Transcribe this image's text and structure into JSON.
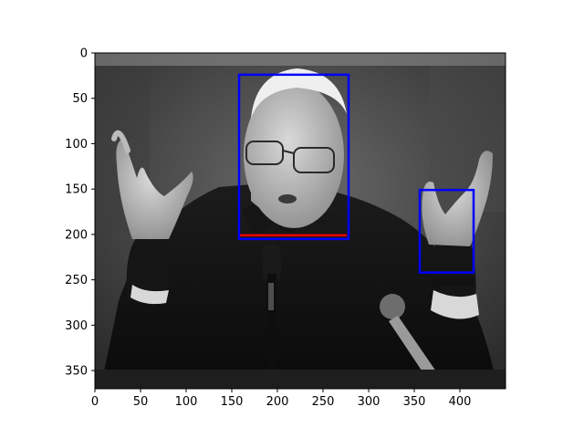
{
  "chart_data": {
    "type": "image",
    "image_size": [
      450,
      370
    ],
    "xlim": [
      0,
      450
    ],
    "ylim": [
      370,
      0
    ],
    "x_ticks": [
      0,
      50,
      100,
      150,
      200,
      250,
      300,
      350,
      400
    ],
    "y_ticks": [
      0,
      50,
      100,
      150,
      200,
      250,
      300,
      350
    ],
    "grid": false,
    "image_description": "grayscale photo of an elderly man in a dark suit with both hands raised, speaking into microphones",
    "boxes": [
      {
        "label": "face",
        "x0": 158,
        "y0": 24,
        "x1": 278,
        "y1": 205,
        "color": "#0000ff"
      },
      {
        "label": "hand",
        "x0": 356,
        "y0": 151,
        "x1": 415,
        "y1": 242,
        "color": "#0000ff"
      }
    ],
    "lines": [
      {
        "x0": 159,
        "x1": 276,
        "y": 201,
        "color": "#ff0000"
      }
    ]
  }
}
